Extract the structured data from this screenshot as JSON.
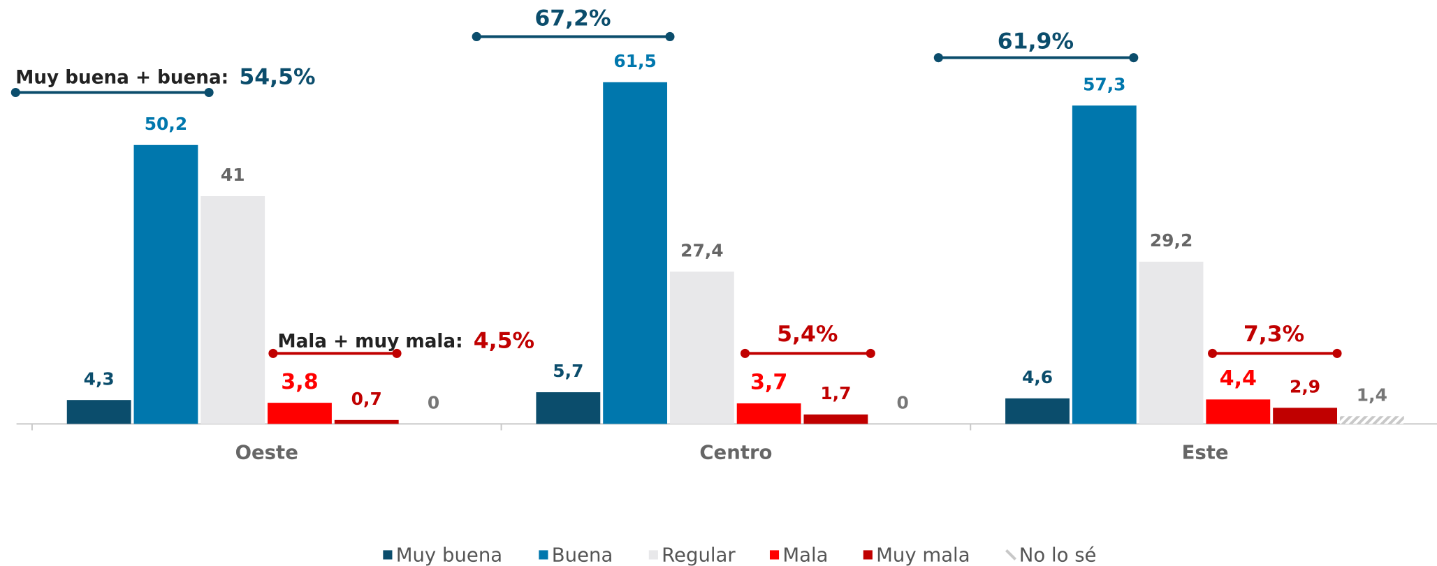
{
  "chart_data": {
    "type": "bar",
    "categories": [
      "Oeste",
      "Centro",
      "Este"
    ],
    "ylim": [
      0,
      76.3
    ],
    "series": [
      {
        "name": "Muy buena",
        "color": "#0b4d6c",
        "values": [
          4.3,
          5.7,
          4.6
        ],
        "value_labels": [
          "4,3",
          "5,7",
          "4,6"
        ]
      },
      {
        "name": "Buena",
        "color": "#0077ad",
        "values": [
          50.2,
          61.5,
          57.3
        ],
        "value_labels": [
          "50,2",
          "61,5",
          "57,3"
        ]
      },
      {
        "name": "Regular",
        "color": "#e8e8ea",
        "values": [
          41,
          27.4,
          29.2
        ],
        "value_labels": [
          "41",
          "27,4",
          "29,2"
        ]
      },
      {
        "name": "Mala",
        "color": "#ff0000",
        "values": [
          3.8,
          3.7,
          4.4
        ],
        "value_labels": [
          "3,8",
          "3,7",
          "4,4"
        ]
      },
      {
        "name": "Muy mala",
        "color": "#c00000",
        "values": [
          0.7,
          1.7,
          2.9
        ],
        "value_labels": [
          "0,7",
          "1,7",
          "2,9"
        ]
      },
      {
        "name": "No lo sé",
        "color": "#c8c8c8",
        "hatched": true,
        "values": [
          0,
          0,
          1.4
        ],
        "value_labels": [
          "0",
          "0",
          "1,4"
        ]
      }
    ],
    "annotations": {
      "positive": {
        "label": "Muy buena + buena:",
        "color": "#0b4d6c",
        "texts": [
          "54,5%",
          "67,2%",
          "61,9%"
        ]
      },
      "negative": {
        "label": "Mala + muy mala:",
        "color": "#c00000",
        "texts": [
          "4,5%",
          "5,4%",
          "7,3%"
        ]
      }
    },
    "legend": "bottom"
  }
}
